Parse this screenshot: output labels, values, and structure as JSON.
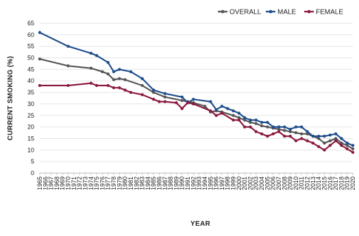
{
  "chart_data": {
    "type": "line",
    "title": "",
    "xlabel": "YEAR",
    "ylabel": "CURRENT SMOKING (%)",
    "ylim": [
      0,
      65
    ],
    "yticks": [
      0,
      5,
      10,
      15,
      20,
      25,
      30,
      35,
      40,
      45,
      50,
      55,
      60,
      65
    ],
    "grid": "horizontal",
    "legend_position": "top-right",
    "x": [
      "1965",
      "1966",
      "1967",
      "1968",
      "1969",
      "1970",
      "1971",
      "1972",
      "1973",
      "1974",
      "1975",
      "1976",
      "1977",
      "1978",
      "1979",
      "1980",
      "1981",
      "1982",
      "1983",
      "1984",
      "1985",
      "1986",
      "1987",
      "1988",
      "1989",
      "1990",
      "1991",
      "1992",
      "1993",
      "1994",
      "1995",
      "1996",
      "1997",
      "1998",
      "1999",
      "2000",
      "2001",
      "2002",
      "2003",
      "2004",
      "2005",
      "2006",
      "2007",
      "2008",
      "2009",
      "2010",
      "2011",
      "2012",
      "2013",
      "2014",
      "2015",
      "2016",
      "2017",
      "2018",
      "2019",
      "2020"
    ],
    "series": [
      {
        "name": "OVERALL",
        "color": "#555555",
        "points": [
          [
            1965,
            49.5
          ],
          [
            1970,
            46.5
          ],
          [
            1974,
            45.5
          ],
          [
            1976,
            44
          ],
          [
            1977,
            43
          ],
          [
            1978,
            40.5
          ],
          [
            1979,
            41
          ],
          [
            1980,
            40.5
          ],
          [
            1983,
            38
          ],
          [
            1985,
            35
          ],
          [
            1987,
            33
          ],
          [
            1990,
            31.5
          ],
          [
            1991,
            31
          ],
          [
            1992,
            30.5
          ],
          [
            1994,
            29
          ],
          [
            1995,
            26.5
          ],
          [
            1996,
            27
          ],
          [
            1997,
            26.5
          ],
          [
            1999,
            25
          ],
          [
            2000,
            24
          ],
          [
            2001,
            23
          ],
          [
            2002,
            22
          ],
          [
            2003,
            21.5
          ],
          [
            2004,
            20.5
          ],
          [
            2005,
            20
          ],
          [
            2006,
            19.5
          ],
          [
            2007,
            19
          ],
          [
            2008,
            18.5
          ],
          [
            2009,
            18
          ],
          [
            2010,
            17.5
          ],
          [
            2011,
            17
          ],
          [
            2012,
            17
          ],
          [
            2013,
            16
          ],
          [
            2014,
            15
          ],
          [
            2015,
            13
          ],
          [
            2016,
            14
          ],
          [
            2017,
            15
          ],
          [
            2018,
            13
          ],
          [
            2019,
            12
          ],
          [
            2020,
            10.5
          ]
        ]
      },
      {
        "name": "MALE",
        "color": "#1f4e8c",
        "points": [
          [
            1965,
            61
          ],
          [
            1970,
            55
          ],
          [
            1974,
            52
          ],
          [
            1975,
            51
          ],
          [
            1977,
            48
          ],
          [
            1978,
            44
          ],
          [
            1979,
            45
          ],
          [
            1981,
            44
          ],
          [
            1983,
            41
          ],
          [
            1985,
            36
          ],
          [
            1987,
            34.5
          ],
          [
            1990,
            33
          ],
          [
            1991,
            30.5
          ],
          [
            1992,
            32
          ],
          [
            1995,
            31
          ],
          [
            1996,
            27.5
          ],
          [
            1997,
            29
          ],
          [
            1998,
            28
          ],
          [
            1999,
            27
          ],
          [
            2000,
            26
          ],
          [
            2001,
            24
          ],
          [
            2002,
            23
          ],
          [
            2003,
            23
          ],
          [
            2004,
            22
          ],
          [
            2005,
            22
          ],
          [
            2006,
            20
          ],
          [
            2007,
            20
          ],
          [
            2008,
            20
          ],
          [
            2009,
            19
          ],
          [
            2010,
            20
          ],
          [
            2011,
            20
          ],
          [
            2012,
            18
          ],
          [
            2013,
            16
          ],
          [
            2014,
            16
          ],
          [
            2015,
            16
          ],
          [
            2016,
            16.5
          ],
          [
            2017,
            17
          ],
          [
            2018,
            15
          ],
          [
            2019,
            13
          ],
          [
            2020,
            12
          ]
        ]
      },
      {
        "name": "FEMALE",
        "color": "#8b1a3e",
        "points": [
          [
            1965,
            38
          ],
          [
            1970,
            38
          ],
          [
            1974,
            39
          ],
          [
            1975,
            38
          ],
          [
            1977,
            38
          ],
          [
            1978,
            37
          ],
          [
            1979,
            37
          ],
          [
            1980,
            36
          ],
          [
            1981,
            35
          ],
          [
            1983,
            34
          ],
          [
            1985,
            32
          ],
          [
            1986,
            31
          ],
          [
            1987,
            31
          ],
          [
            1989,
            30.5
          ],
          [
            1990,
            28
          ],
          [
            1991,
            30.5
          ],
          [
            1992,
            30
          ],
          [
            1995,
            27
          ],
          [
            1996,
            25
          ],
          [
            1997,
            26
          ],
          [
            1999,
            23
          ],
          [
            2000,
            23
          ],
          [
            2001,
            20
          ],
          [
            2002,
            20
          ],
          [
            2003,
            18
          ],
          [
            2004,
            17
          ],
          [
            2005,
            16
          ],
          [
            2006,
            17
          ],
          [
            2007,
            18
          ],
          [
            2008,
            16
          ],
          [
            2009,
            16
          ],
          [
            2010,
            14
          ],
          [
            2011,
            15
          ],
          [
            2012,
            14
          ],
          [
            2013,
            13
          ],
          [
            2014,
            11.5
          ],
          [
            2015,
            10
          ],
          [
            2016,
            12
          ],
          [
            2017,
            14
          ],
          [
            2018,
            12
          ],
          [
            2019,
            10.5
          ],
          [
            2020,
            9
          ]
        ]
      }
    ]
  }
}
